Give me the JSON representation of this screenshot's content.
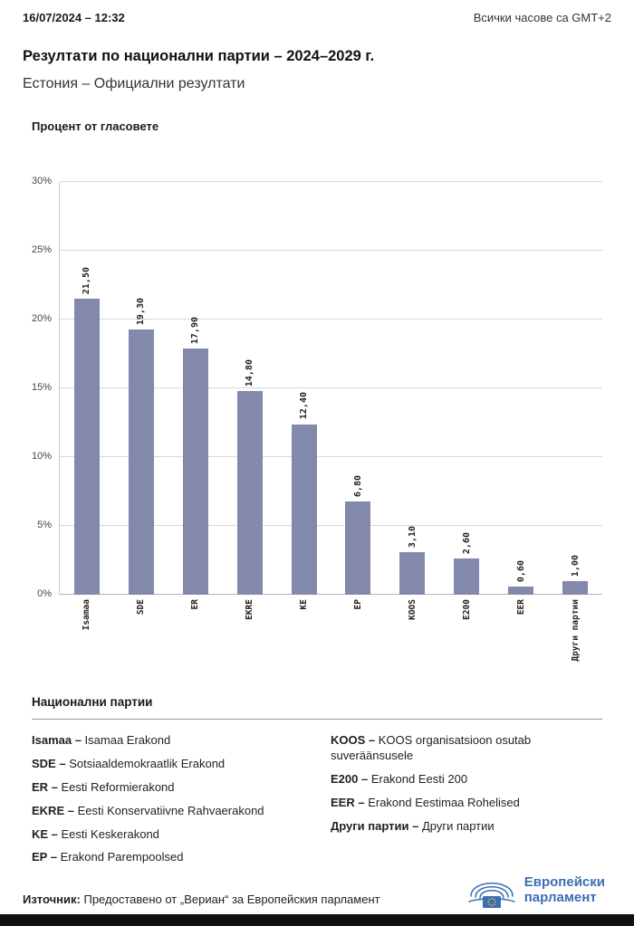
{
  "header": {
    "datetime": "16/07/2024 – 12:32",
    "timezone_note": "Всички часове са GMT+2"
  },
  "title": "Резултати по национални партии – 2024–2029 г.",
  "subtitle": "Естония – Официални резултати",
  "chart_data": {
    "type": "bar",
    "title": "Процент от гласовете",
    "categories": [
      "Isamaa",
      "SDE",
      "ER",
      "EKRE",
      "KE",
      "EP",
      "KOOS",
      "E200",
      "EER",
      "Други партии"
    ],
    "values": [
      21.5,
      19.3,
      17.9,
      14.8,
      12.4,
      6.8,
      3.1,
      2.6,
      0.6,
      1.0
    ],
    "value_labels": [
      "21,50",
      "19,30",
      "17,90",
      "14,80",
      "12,40",
      "6,80",
      "3,10",
      "2,60",
      "0,60",
      "1,00"
    ],
    "ylabel": "Процент от гласовете",
    "ylim": [
      0,
      30
    ],
    "ytick_labels": [
      "0%",
      "5%",
      "10%",
      "15%",
      "20%",
      "25%",
      "30%"
    ],
    "bar_color": "#8289ab",
    "grid": true,
    "legend_position": "none"
  },
  "legend": {
    "heading": "Национални партии",
    "columns": [
      [
        {
          "abbr": "Isamaa –",
          "name": "Isamaa Erakond"
        },
        {
          "abbr": "SDE –",
          "name": "Sotsiaaldemokraatlik Erakond"
        },
        {
          "abbr": "ER –",
          "name": "Eesti Reformierakond"
        },
        {
          "abbr": "EKRE –",
          "name": "Eesti Konservatiivne Rahvaerakond"
        },
        {
          "abbr": "KE –",
          "name": "Eesti Keskerakond"
        },
        {
          "abbr": "EP –",
          "name": "Erakond Parempoolsed"
        }
      ],
      [
        {
          "abbr": "KOOS –",
          "name": "KOOS organisatsioon osutab suveräänsusele"
        },
        {
          "abbr": "E200 –",
          "name": "Erakond Eesti 200"
        },
        {
          "abbr": "EER –",
          "name": "Erakond Eestimaa Rohelised"
        },
        {
          "abbr": "Други партии –",
          "name": "Други партии"
        }
      ]
    ]
  },
  "footer": {
    "source_label": "Източник:",
    "source_text": "Предоставено от „Вериан“ за Европейския парламент",
    "logo_line1": "Европейски",
    "logo_line2": "парламент"
  },
  "colors": {
    "bar": "#8289ab",
    "logo_blue": "#3c6eb4",
    "star_yellow": "#f8c623"
  }
}
